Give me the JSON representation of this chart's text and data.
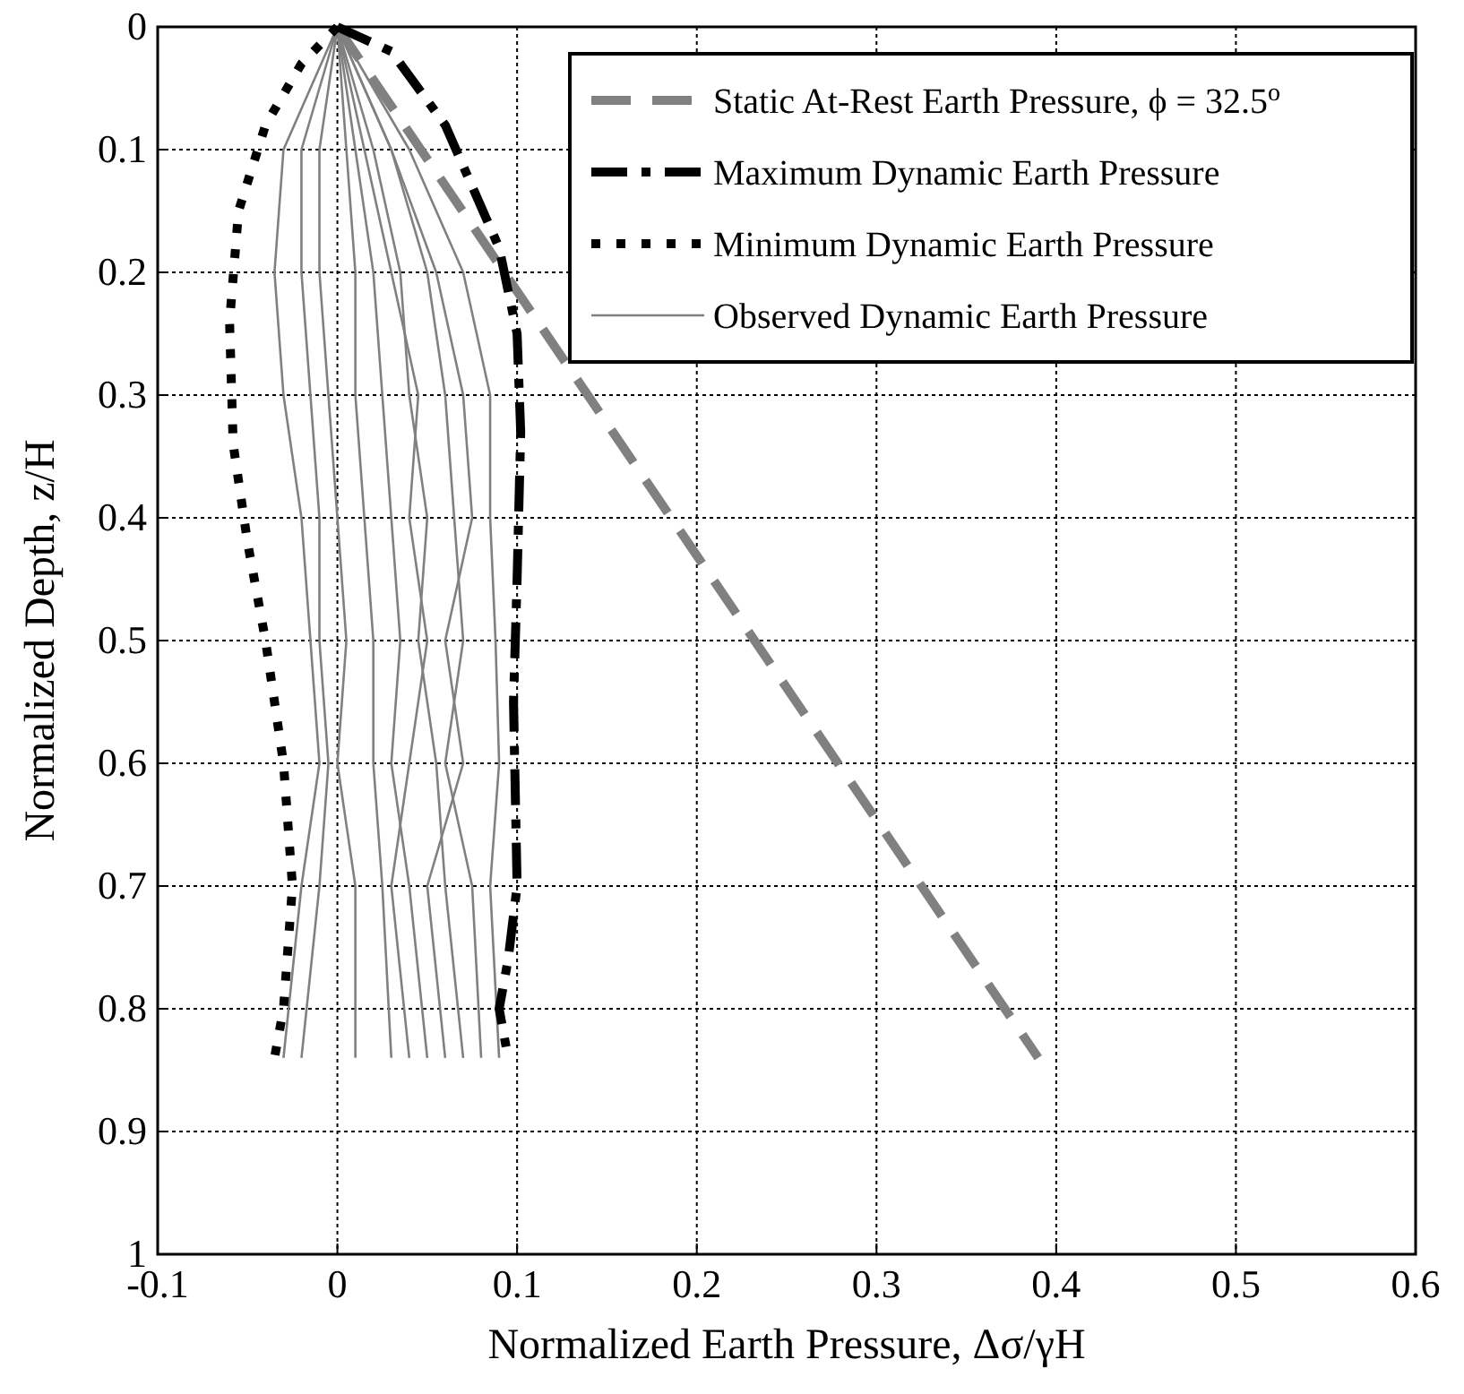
{
  "chart_data": {
    "type": "line",
    "xlabel": "Normalized Earth Pressure, Δσ/γH",
    "ylabel": "Normalized Depth, z/H",
    "xlim": [
      -0.1,
      0.6
    ],
    "xticks": [
      -0.1,
      0,
      0.1,
      0.2,
      0.3,
      0.4,
      0.5,
      0.6
    ],
    "ylim": [
      1,
      0
    ],
    "yticks": [
      0,
      0.1,
      0.2,
      0.3,
      0.4,
      0.5,
      0.6,
      0.7,
      0.8,
      0.9,
      1
    ],
    "grid": true,
    "legend": "top right",
    "marker": "none",
    "series": [
      {
        "name": "Static At-Rest Earth Pressure, ϕ = 32.5$^{o}$",
        "color": "#808080",
        "line_style": "dashed",
        "x": [
          0,
          0.39
        ],
        "values": [
          0,
          0.84
        ]
      },
      {
        "name": "Maximum Dynamic Earth Pressure",
        "color": "#000000",
        "line_style": "dashdot",
        "x": [
          0,
          0.03,
          0.06,
          0.09,
          0.1,
          0.102,
          0.1,
          0.098,
          0.1,
          0.095,
          0.09,
          0.095
        ],
        "values": [
          0,
          0.02,
          0.08,
          0.18,
          0.25,
          0.33,
          0.45,
          0.55,
          0.7,
          0.76,
          0.8,
          0.84
        ]
      },
      {
        "name": "Minimum Dynamic Earth Pressure",
        "color": "#000000",
        "line_style": "dotted",
        "x": [
          0,
          -0.02,
          -0.04,
          -0.055,
          -0.06,
          -0.058,
          -0.05,
          -0.04,
          -0.03,
          -0.025,
          -0.03,
          -0.035
        ],
        "values": [
          0,
          0.03,
          0.08,
          0.15,
          0.24,
          0.34,
          0.42,
          0.5,
          0.6,
          0.7,
          0.8,
          0.84
        ]
      },
      {
        "name": "Observed Dynamic Earth Pressure",
        "color": "#808080",
        "line_style": "solid",
        "x": [
          0,
          -0.03,
          -0.035,
          -0.03,
          -0.02,
          -0.015,
          -0.01,
          -0.02,
          -0.03
        ],
        "values": [
          0,
          0.1,
          0.2,
          0.3,
          0.4,
          0.5,
          0.6,
          0.7,
          0.84
        ]
      },
      {
        "color": "#808080",
        "line_style": "solid",
        "x": [
          0,
          0.04,
          0.07,
          0.085,
          0.085,
          0.088,
          0.09,
          0.085,
          0.09
        ],
        "values": [
          0,
          0.1,
          0.2,
          0.3,
          0.4,
          0.5,
          0.6,
          0.7,
          0.84
        ]
      },
      {
        "color": "#808080",
        "line_style": "solid",
        "x": [
          0,
          0.03,
          0.05,
          0.06,
          0.065,
          0.07,
          0.06,
          0.075,
          0.08
        ],
        "values": [
          0,
          0.1,
          0.2,
          0.3,
          0.4,
          0.5,
          0.6,
          0.7,
          0.84
        ]
      },
      {
        "color": "#808080",
        "line_style": "solid",
        "x": [
          0,
          0.02,
          0.035,
          0.04,
          0.05,
          0.045,
          0.055,
          0.06,
          0.07
        ],
        "values": [
          0,
          0.1,
          0.2,
          0.3,
          0.4,
          0.5,
          0.6,
          0.7,
          0.84
        ]
      },
      {
        "color": "#808080",
        "line_style": "solid",
        "x": [
          0,
          0.01,
          0.02,
          0.025,
          0.03,
          0.035,
          0.03,
          0.04,
          0.05
        ],
        "values": [
          0,
          0.1,
          0.2,
          0.3,
          0.4,
          0.5,
          0.6,
          0.7,
          0.84
        ]
      },
      {
        "color": "#808080",
        "line_style": "solid",
        "x": [
          0,
          0.005,
          0.01,
          0.01,
          0.015,
          0.02,
          0.02,
          0.025,
          0.03
        ],
        "values": [
          0,
          0.1,
          0.2,
          0.3,
          0.4,
          0.5,
          0.6,
          0.7,
          0.84
        ]
      },
      {
        "color": "#808080",
        "line_style": "solid",
        "x": [
          0,
          -0.01,
          -0.01,
          -0.005,
          0,
          0.005,
          0,
          0.01,
          0.01
        ],
        "values": [
          0,
          0.1,
          0.2,
          0.3,
          0.4,
          0.5,
          0.6,
          0.7,
          0.84
        ]
      },
      {
        "color": "#808080",
        "line_style": "solid",
        "x": [
          0,
          -0.02,
          -0.02,
          -0.015,
          -0.01,
          -0.01,
          -0.005,
          -0.01,
          -0.02
        ],
        "values": [
          0,
          0.1,
          0.2,
          0.3,
          0.4,
          0.5,
          0.6,
          0.7,
          0.84
        ]
      },
      {
        "color": "#808080",
        "line_style": "solid",
        "x": [
          0,
          0.03,
          0.055,
          0.07,
          0.075,
          0.06,
          0.07,
          0.05,
          0.06
        ],
        "values": [
          0,
          0.1,
          0.2,
          0.3,
          0.4,
          0.5,
          0.6,
          0.7,
          0.84
        ]
      },
      {
        "color": "#808080",
        "line_style": "solid",
        "x": [
          0,
          0.015,
          0.03,
          0.045,
          0.04,
          0.05,
          0.04,
          0.03,
          0.04
        ],
        "values": [
          0,
          0.1,
          0.2,
          0.3,
          0.4,
          0.5,
          0.6,
          0.7,
          0.84
        ]
      }
    ]
  }
}
